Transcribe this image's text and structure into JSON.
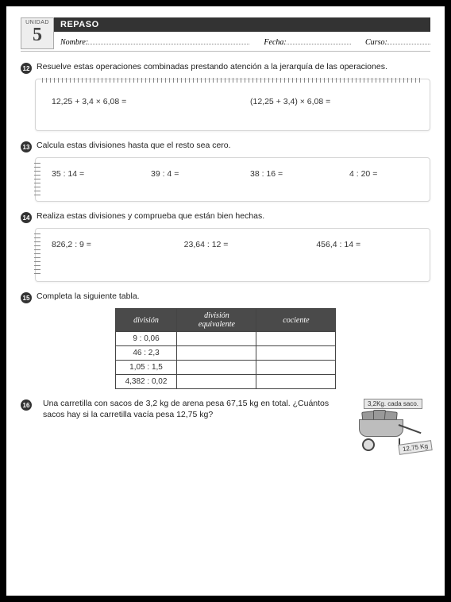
{
  "header": {
    "unit_label": "UNIDAD",
    "unit_number": "5",
    "title": "REPASO",
    "nombre_label": "Nombre:",
    "fecha_label": "Fecha:",
    "curso_label": "Curso:"
  },
  "ex12": {
    "num": "12",
    "text": "Resuelve estas operaciones combinadas prestando atención a la jerarquía de las operaciones.",
    "items": [
      "12,25 + 3,4 × 6,08 =",
      "(12,25 + 3,4) × 6,08 ="
    ]
  },
  "ex13": {
    "num": "13",
    "text": "Calcula estas divisiones hasta que el resto sea cero.",
    "items": [
      "35 : 14 =",
      "39 : 4 =",
      "38 : 16 =",
      "4 : 20 ="
    ]
  },
  "ex14": {
    "num": "14",
    "text": "Realiza estas divisiones y comprueba que están bien hechas.",
    "items": [
      "826,2 : 9 =",
      "23,64 : 12 =",
      "456,4 : 14 ="
    ]
  },
  "ex15": {
    "num": "15",
    "text": "Completa la siguiente tabla.",
    "table": {
      "columns": [
        "división",
        "división equivalente",
        "cociente"
      ],
      "rows": [
        "9 : 0,06",
        "46 : 2,3",
        "1,05 : 1,5",
        "4,382 : 0,02"
      ]
    }
  },
  "ex16": {
    "num": "16",
    "text": "Una carretilla con sacos de 3,2 kg de arena pesa 67,15 kg en total. ¿Cuántos sacos hay si la carretilla vacía pesa 12,75 kg?",
    "tag1": "3,2Kg. cada saco.",
    "tag2": "12,75 Kg"
  },
  "colors": {
    "page_bg": "#ffffff",
    "frame_bg": "#000000",
    "bar_bg": "#333333",
    "badge_num": "#333333",
    "text": "#222222",
    "table_header_bg": "#4a4a4a",
    "notebook_border": "#d5d5d5"
  }
}
